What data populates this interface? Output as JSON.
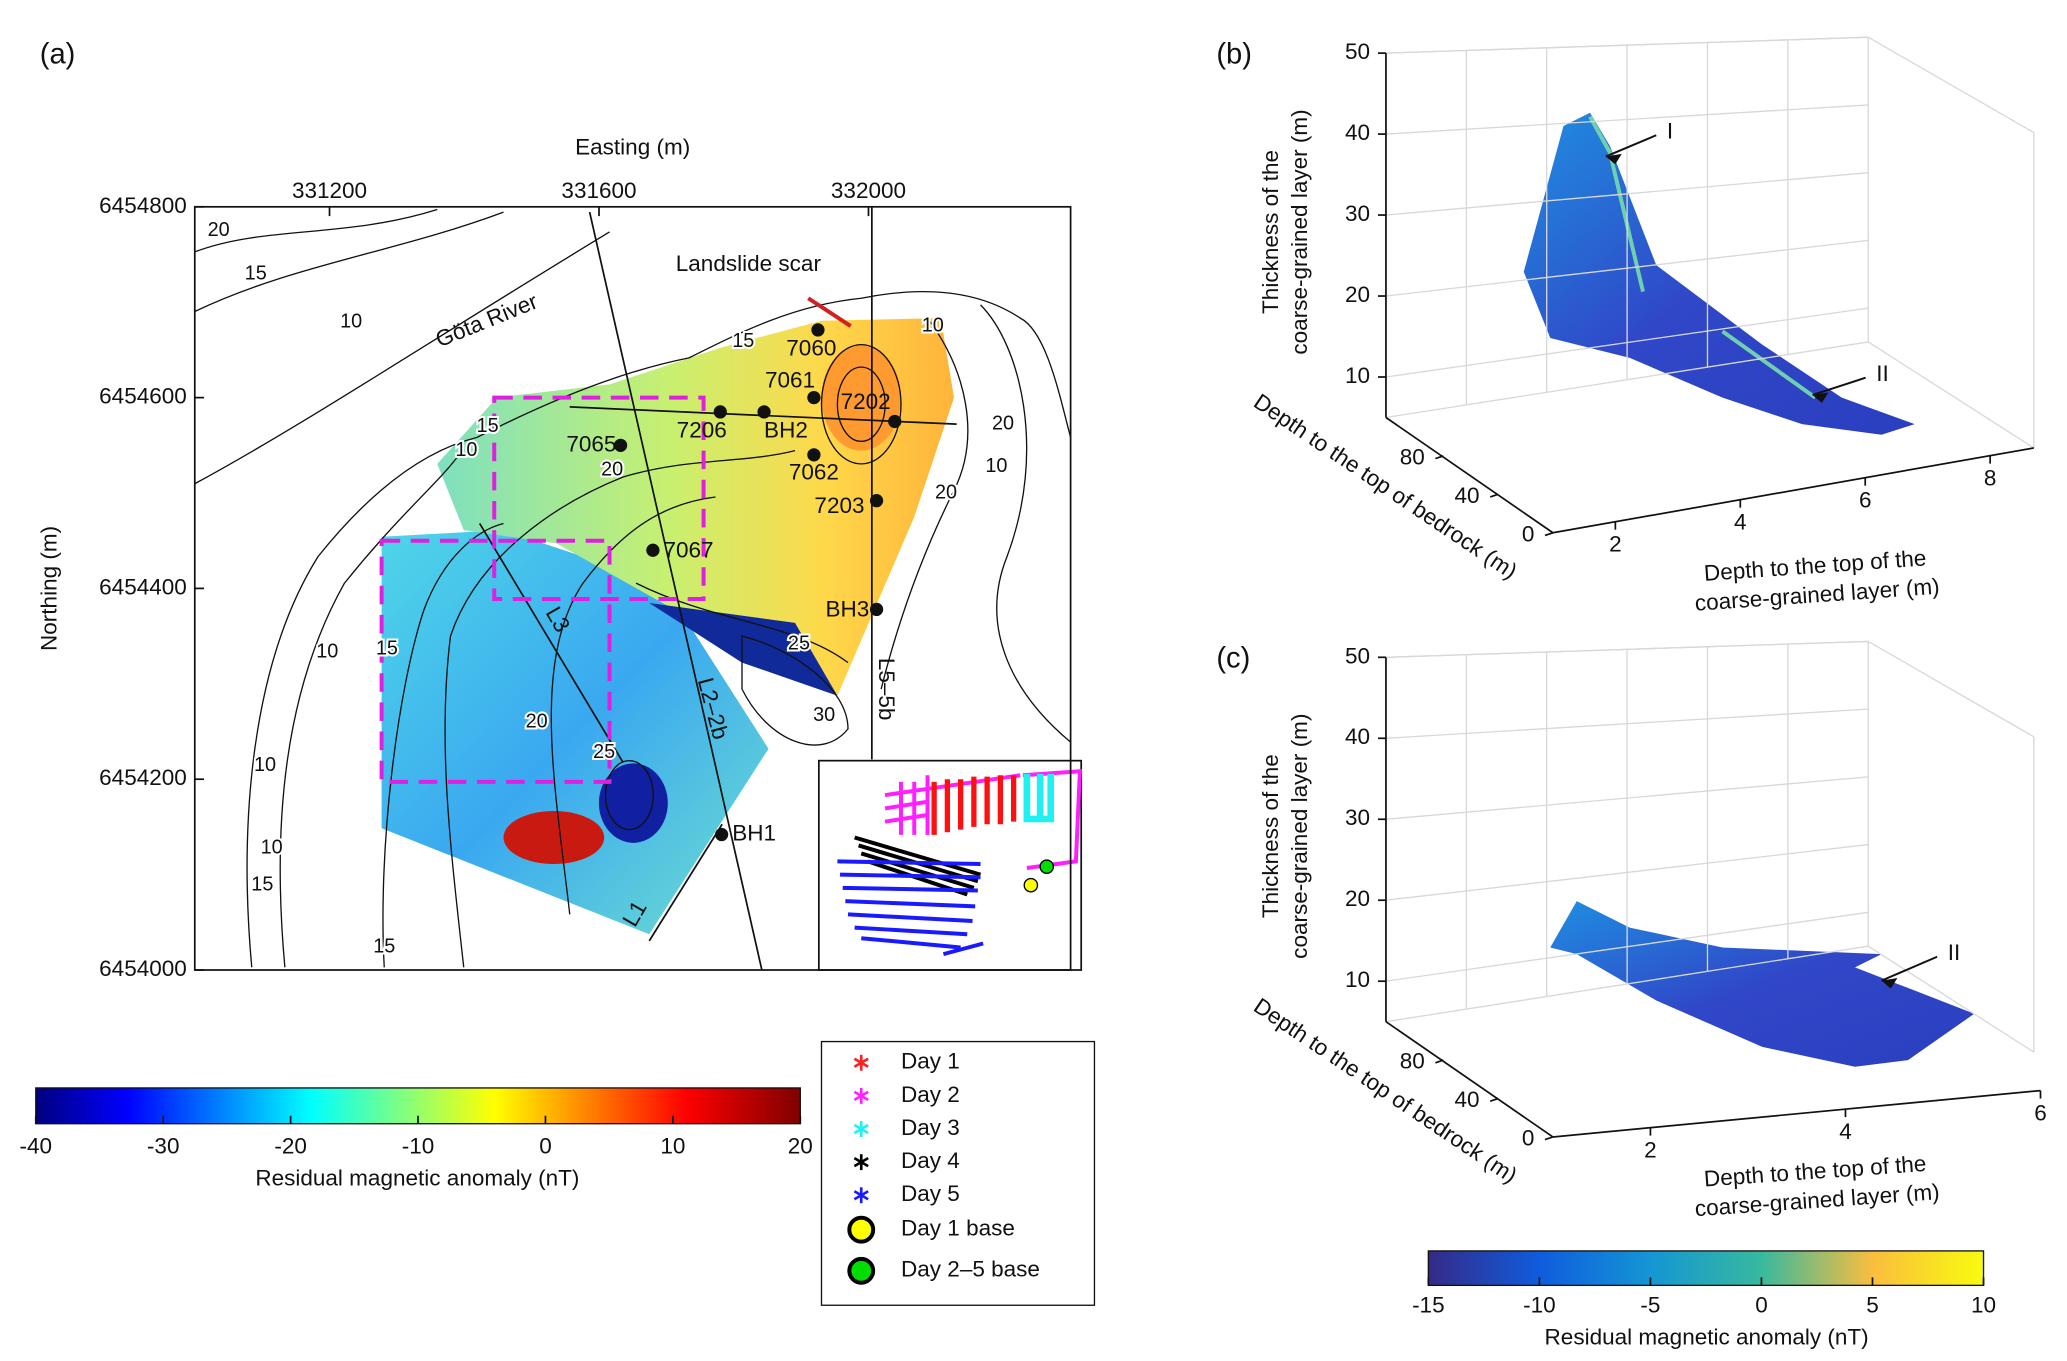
{
  "panel_a": {
    "label": "(a)",
    "map": {
      "xlabel": "Easting (m)",
      "ylabel": "Northing (m)",
      "xlim": [
        331000,
        332300
      ],
      "ylim": [
        6454000,
        6454800
      ],
      "xticks": [
        331200,
        331600,
        332000
      ],
      "yticks": [
        6454000,
        6454200,
        6454400,
        6454600,
        6454800
      ]
    },
    "contour_labels": [
      "20",
      "15",
      "10",
      "15",
      "10",
      "15",
      "20",
      "10",
      "20",
      "10",
      "20",
      "25",
      "30",
      "15",
      "10",
      "20",
      "25",
      "10",
      "10",
      "15",
      "15"
    ],
    "place_labels": [
      "Göta River",
      "Landslide scar"
    ],
    "points": [
      {
        "label": "7060",
        "x": 331925,
        "y": 6454671
      },
      {
        "label": "7061",
        "x": 331919,
        "y": 6454600
      },
      {
        "label": "7202",
        "x": 332039,
        "y": 6454575
      },
      {
        "label": "7206",
        "x": 331780,
        "y": 6454585
      },
      {
        "label": "BH2",
        "x": 331845,
        "y": 6454585
      },
      {
        "label": "7065",
        "x": 331632,
        "y": 6454550
      },
      {
        "label": "7062",
        "x": 331919,
        "y": 6454540
      },
      {
        "label": "7203",
        "x": 332012,
        "y": 6454492
      },
      {
        "label": "7067",
        "x": 331680,
        "y": 6454440
      },
      {
        "label": "BH3",
        "x": 332012,
        "y": 6454378
      },
      {
        "label": "BH1",
        "x": 331782,
        "y": 6454142
      }
    ],
    "line_labels": [
      "L3",
      "L2–2b",
      "L1",
      "L5–5b"
    ],
    "colorbar": {
      "label": "Residual magnetic anomaly (nT)",
      "lim": [
        -40,
        20
      ],
      "ticks": [
        -40,
        -30,
        -20,
        -10,
        0,
        10,
        20
      ]
    },
    "legend": [
      {
        "name": "Day 1",
        "color": "#ff2020",
        "marker": "star"
      },
      {
        "name": "Day 2",
        "color": "#ff20ff",
        "marker": "star"
      },
      {
        "name": "Day 3",
        "color": "#20f0f0",
        "marker": "star"
      },
      {
        "name": "Day 4",
        "color": "#000000",
        "marker": "star"
      },
      {
        "name": "Day 5",
        "color": "#1a1aff",
        "marker": "star"
      },
      {
        "name": "Day 1 base",
        "color": "#ffff00",
        "marker": "circle"
      },
      {
        "name": "Day 2–5 base",
        "color": "#00dd00",
        "marker": "circle"
      }
    ]
  },
  "panel_b": {
    "label": "(b)",
    "zlabel": [
      "Thickness of the",
      "coarse-grained layer (m)"
    ],
    "ylabel": "Depth to the top of bedrock (m)",
    "xlabel": [
      "Depth to the top of the",
      "coarse-grained layer (m)"
    ],
    "zlim": [
      5,
      50
    ],
    "zticks": [
      10,
      20,
      30,
      40,
      50
    ],
    "ylim": [
      0,
      120
    ],
    "yticks": [
      0,
      40,
      80
    ],
    "xlim": [
      1,
      8.7
    ],
    "xticks": [
      2,
      4,
      6,
      8
    ],
    "annotations": [
      "I",
      "II"
    ]
  },
  "panel_c": {
    "label": "(c)",
    "zlabel": [
      "Thickness of the",
      "coarse-grained layer (m)"
    ],
    "ylabel": "Depth to the top of bedrock (m)",
    "xlabel": [
      "Depth to the top of the",
      "coarse-grained layer (m)"
    ],
    "zlim": [
      5,
      50
    ],
    "zticks": [
      10,
      20,
      30,
      40,
      50
    ],
    "ylim": [
      0,
      120
    ],
    "yticks": [
      0,
      40,
      80
    ],
    "xlim": [
      1,
      6
    ],
    "xticks": [
      2,
      4,
      6
    ],
    "annotations": [
      "II"
    ],
    "colorbar": {
      "label": "Residual magnetic anomaly (nT)",
      "lim": [
        -15,
        10
      ],
      "ticks": [
        -15,
        -10,
        -5,
        0,
        5,
        10
      ]
    }
  }
}
